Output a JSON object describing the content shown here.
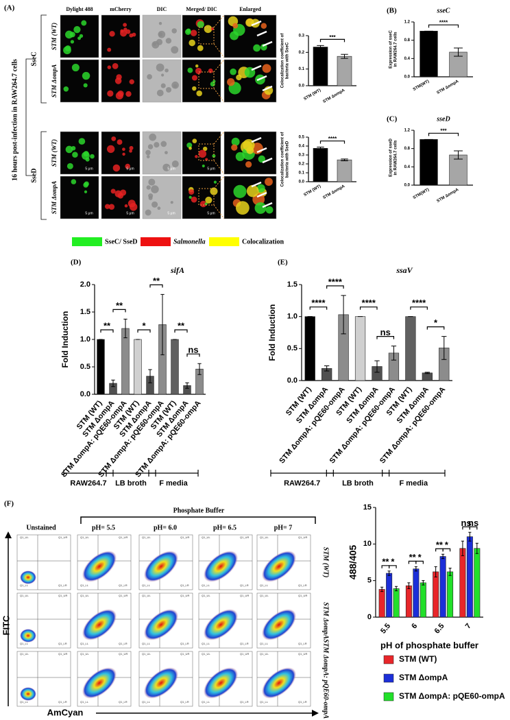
{
  "panel_a": {
    "label": "(A)",
    "headers": [
      "Dylight 488",
      "mCherry",
      "DIC",
      "Merged/ DIC",
      "Enlarged"
    ],
    "rows": [
      "STM (WT)",
      "STM ΔompA",
      "STM (WT)",
      "STM ΔompA"
    ],
    "groups": [
      "SseC",
      "SseD"
    ],
    "side_label": "16 hours post-infection in RAW264.7 cells",
    "scale_bar": "5 μm",
    "legend": [
      {
        "name": "SseC/ SseD",
        "color": "#22ee22"
      },
      {
        "name": "Salmonella",
        "color": "#ee1111"
      },
      {
        "name": "Colocalization",
        "color": "#ffff00"
      }
    ]
  },
  "panel_f": {
    "label": "(F)",
    "buffer": "Phosphate Buffer",
    "unstained": "Unstained",
    "conditions": [
      "pH= 5.5",
      "pH= 6.0",
      "pH= 6.5",
      "pH= 7"
    ],
    "rows": [
      "STM (WT)",
      "STM ΔompA",
      "STM ΔompA: pQE60-ompA"
    ],
    "quadrants": [
      "Q1_UL",
      "Q1_UR",
      "Q1_LL",
      "Q1_LR"
    ],
    "y_axis": "FITC",
    "x_axis": "AmCyan"
  },
  "chart_data": [
    {
      "type": "bar",
      "ylabel": [
        "Colocalization coefficient of",
        "bacteria with SseC"
      ],
      "categories": [
        "STM (WT)",
        "STM ΔompA"
      ],
      "values": [
        0.232,
        0.176
      ],
      "errors": [
        0.009,
        0.012
      ],
      "colors": [
        "#000000",
        "#a6a6a6"
      ],
      "ylim": [
        0,
        0.3
      ],
      "yticks": [
        {
          "value": 0,
          "label": "0.0"
        },
        0.1,
        0.2,
        0.3
      ],
      "annotations": [
        "***"
      ]
    },
    {
      "type": "bar",
      "panel": "(B)",
      "title": "sseC",
      "ylabel": [
        "Expression of sseC",
        "in RAW264.7 cells"
      ],
      "categories": [
        "STM(WT)",
        "STM ΔompA"
      ],
      "values": [
        1.0,
        0.54
      ],
      "errors": [
        0,
        0.09
      ],
      "colors": [
        "#000000",
        "#a6a6a6"
      ],
      "ylim": [
        0,
        1.2
      ],
      "yticks": [
        {
          "value": 0,
          "label": "0.0"
        },
        0.4,
        0.8,
        1.2
      ],
      "annotations": [
        "****"
      ]
    },
    {
      "type": "bar",
      "ylabel": [
        "Colocalization coefficient of",
        "bacteria with SseD"
      ],
      "categories": [
        "STM (WT)",
        "STM ΔompA"
      ],
      "values": [
        0.375,
        0.245
      ],
      "errors": [
        0.013,
        0.01
      ],
      "colors": [
        "#000000",
        "#a6a6a6"
      ],
      "ylim": [
        0,
        0.5
      ],
      "yticks": [
        {
          "value": 0,
          "label": "0.0"
        },
        0.1,
        0.2,
        0.3,
        0.4,
        0.5
      ],
      "annotations": [
        "****"
      ]
    },
    {
      "type": "bar",
      "panel": "(C)",
      "title": "sseD",
      "ylabel": [
        "Expression of sseD",
        "in RAW264.7 cells"
      ],
      "categories": [
        "STM(WT)",
        "STM ΔompA"
      ],
      "values": [
        1.0,
        0.66
      ],
      "errors": [
        0,
        0.09
      ],
      "colors": [
        "#000000",
        "#a6a6a6"
      ],
      "ylim": [
        0,
        1.2
      ],
      "yticks": [
        {
          "value": 0,
          "label": "0.0"
        },
        0.4,
        0.8,
        1.2
      ],
      "annotations": [
        "***"
      ]
    },
    {
      "type": "bar",
      "panel": "(D)",
      "title": "sifA",
      "ylabel": "Fold Induction",
      "categories": [
        "STM (WT)",
        "STM ΔompA",
        "STM ΔompA: pQE60-ompA",
        "STM (WT)",
        "STM ΔompA",
        "STM ΔompA: pQE60-ompA",
        "STM (WT)",
        "STM ΔompA",
        "STM ΔompA: pQE60-ompA"
      ],
      "values": [
        1.0,
        0.2,
        1.2,
        1.0,
        0.33,
        1.27,
        1.0,
        0.16,
        0.46
      ],
      "errors": [
        0,
        0.06,
        0.17,
        0,
        0.12,
        0.55,
        0,
        0.05,
        0.1
      ],
      "colors": [
        "#000000",
        "#505050",
        "#8c8c8c",
        "#d0d0d0",
        "#505050",
        "#8c8c8c",
        "#606060",
        "#505050",
        "#8c8c8c"
      ],
      "ylim": [
        0,
        2
      ],
      "yticks": [
        {
          "value": 0,
          "label": "0.0"
        },
        {
          "value": 0.5,
          "label": "0.5"
        },
        {
          "value": 1,
          "label": "1.0"
        },
        {
          "value": 1.5,
          "label": "1.5"
        },
        {
          "value": 2,
          "label": "2.0"
        }
      ],
      "annotations": [
        "**",
        "**",
        "*",
        "**",
        "**",
        "ns"
      ],
      "groups": [
        "RAW264.7",
        "LB broth",
        "F media"
      ]
    },
    {
      "type": "bar",
      "panel": "(E)",
      "title": "ssaV",
      "ylabel": "Fold Induction",
      "categories": [
        "STM (WT)",
        "STM ΔompA",
        "STM ΔompA: pQE60-ompA",
        "STM (WT)",
        "STM ΔompA",
        "STM ΔompA: pQE60-ompA",
        "STM (WT)",
        "STM ΔompA",
        "STM ΔompA: pQE60-ompA"
      ],
      "values": [
        1.0,
        0.19,
        1.03,
        1.0,
        0.22,
        0.43,
        1.0,
        0.12,
        0.51
      ],
      "errors": [
        0,
        0.04,
        0.3,
        0,
        0.09,
        0.11,
        0,
        0.01,
        0.18
      ],
      "colors": [
        "#000000",
        "#505050",
        "#8c8c8c",
        "#d0d0d0",
        "#505050",
        "#8c8c8c",
        "#606060",
        "#505050",
        "#8c8c8c"
      ],
      "ylim": [
        0,
        1.5
      ],
      "yticks": [
        {
          "value": 0,
          "label": "0.0"
        },
        {
          "value": 0.5,
          "label": "0.5"
        },
        {
          "value": 1,
          "label": "1.0"
        },
        {
          "value": 1.5,
          "label": "1.5"
        }
      ],
      "annotations": [
        "****",
        "****",
        "****",
        "ns",
        "****",
        "*"
      ],
      "groups": [
        "RAW264.7",
        "LB broth",
        "F media"
      ]
    },
    {
      "type": "bar",
      "xlabel": "pH of phosphate buffer",
      "ylabel": "488/405",
      "categories": [
        "5.5",
        "6",
        "6.5",
        "7"
      ],
      "series": [
        {
          "name": "STM (WT)",
          "color": "#e8262a",
          "values": [
            3.8,
            4.3,
            6.2,
            9.4
          ],
          "errors": [
            0.3,
            0.4,
            0.7,
            1.0
          ]
        },
        {
          "name": "STM ΔompA",
          "color": "#1c2fd8",
          "values": [
            6.0,
            6.6,
            8.3,
            11.0
          ],
          "errors": [
            0.3,
            0.3,
            0.3,
            0.6
          ]
        },
        {
          "name": "STM ΔompA: pQE60-ompA",
          "color": "#22e02a",
          "values": [
            3.9,
            4.7,
            6.2,
            9.4
          ],
          "errors": [
            0.3,
            0.3,
            0.5,
            0.7
          ]
        }
      ],
      "ylim": [
        0,
        15
      ],
      "yticks": [
        0,
        5,
        10,
        15
      ],
      "annotations": [
        "**",
        "*",
        "**",
        "*",
        "**",
        "*",
        "ns",
        "ns"
      ]
    }
  ]
}
